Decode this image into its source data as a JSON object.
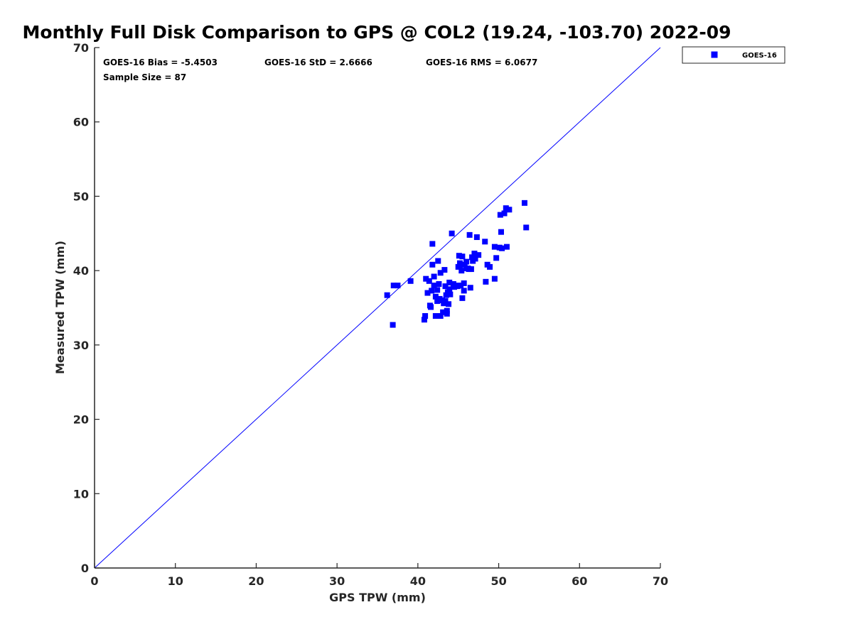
{
  "chart_data": {
    "type": "scatter",
    "title": "Monthly Full Disk Comparison to GPS @ COL2 (19.24, -103.70) 2022-09",
    "xlabel": "GPS TPW (mm)",
    "ylabel": "Measured TPW (mm)",
    "xlim": [
      0,
      70
    ],
    "ylim": [
      0,
      70
    ],
    "xticks": [
      "0",
      "10",
      "20",
      "30",
      "40",
      "50",
      "60",
      "70"
    ],
    "yticks": [
      "0",
      "10",
      "20",
      "30",
      "40",
      "50",
      "60",
      "70"
    ],
    "grid": false,
    "legend": {
      "position": "outside-top-right",
      "entries": [
        "GOES-16"
      ]
    },
    "annotations": {
      "bias": "GOES-16 Bias = -5.4503",
      "std": "GOES-16 StD = 2.6666",
      "rms": "GOES-16 RMS = 6.0677",
      "sample": "Sample Size = 87"
    },
    "reference_line": {
      "label": "1:1",
      "from": [
        0,
        0
      ],
      "to": [
        70,
        70
      ],
      "color": "#0000ff"
    },
    "series": [
      {
        "name": "GOES-16",
        "color": "#0000ff",
        "marker": "square",
        "points": [
          [
            36.2,
            36.7
          ],
          [
            36.9,
            32.7
          ],
          [
            37.0,
            38.0
          ],
          [
            37.5,
            38.0
          ],
          [
            39.1,
            38.6
          ],
          [
            40.8,
            33.4
          ],
          [
            40.9,
            33.9
          ],
          [
            41.0,
            38.9
          ],
          [
            41.2,
            37.0
          ],
          [
            41.4,
            38.6
          ],
          [
            41.6,
            35.1
          ],
          [
            41.7,
            37.3
          ],
          [
            41.8,
            40.8
          ],
          [
            41.8,
            43.6
          ],
          [
            42.0,
            39.2
          ],
          [
            42.2,
            36.5
          ],
          [
            42.2,
            33.9
          ],
          [
            42.4,
            35.9
          ],
          [
            42.4,
            37.4
          ],
          [
            42.5,
            41.3
          ],
          [
            42.6,
            38.2
          ],
          [
            42.7,
            36.2
          ],
          [
            42.8,
            39.7
          ],
          [
            42.8,
            33.9
          ],
          [
            43.0,
            36.0
          ],
          [
            43.1,
            34.4
          ],
          [
            43.2,
            35.6
          ],
          [
            43.3,
            40.1
          ],
          [
            43.4,
            37.9
          ],
          [
            43.5,
            36.7
          ],
          [
            43.6,
            34.2
          ],
          [
            43.6,
            34.6
          ],
          [
            43.7,
            37.1
          ],
          [
            43.8,
            35.5
          ],
          [
            43.9,
            37.5
          ],
          [
            44.0,
            36.8
          ],
          [
            44.2,
            45.0
          ],
          [
            44.4,
            38.2
          ],
          [
            44.5,
            37.8
          ],
          [
            44.9,
            37.9
          ],
          [
            45.0,
            40.5
          ],
          [
            45.1,
            42.0
          ],
          [
            45.2,
            41.0
          ],
          [
            45.3,
            38.0
          ],
          [
            45.4,
            40.0
          ],
          [
            45.5,
            41.9
          ],
          [
            45.5,
            36.3
          ],
          [
            45.7,
            38.3
          ],
          [
            45.7,
            37.3
          ],
          [
            45.8,
            40.8
          ],
          [
            46.0,
            40.3
          ],
          [
            46.3,
            40.2
          ],
          [
            46.4,
            44.8
          ],
          [
            46.5,
            37.7
          ],
          [
            46.6,
            40.2
          ],
          [
            46.7,
            41.8
          ],
          [
            46.8,
            41.3
          ],
          [
            47.0,
            42.2
          ],
          [
            47.1,
            41.6
          ],
          [
            47.3,
            44.5
          ],
          [
            47.5,
            42.1
          ],
          [
            48.3,
            43.9
          ],
          [
            48.4,
            38.5
          ],
          [
            48.6,
            40.8
          ],
          [
            48.9,
            40.5
          ],
          [
            49.5,
            38.9
          ],
          [
            49.5,
            43.2
          ],
          [
            49.7,
            41.7
          ],
          [
            50.1,
            43.1
          ],
          [
            50.2,
            47.5
          ],
          [
            50.3,
            45.2
          ],
          [
            50.4,
            43.0
          ],
          [
            50.7,
            47.7
          ],
          [
            50.9,
            48.4
          ],
          [
            51.0,
            43.2
          ],
          [
            51.3,
            48.2
          ],
          [
            53.2,
            49.1
          ],
          [
            53.4,
            45.8
          ],
          [
            43.4,
            35.9
          ],
          [
            42.0,
            38.0
          ],
          [
            43.9,
            38.4
          ],
          [
            46.0,
            41.2
          ],
          [
            44.6,
            38.0
          ],
          [
            47.0,
            42.3
          ],
          [
            41.5,
            35.3
          ],
          [
            45.2,
            40.7
          ],
          [
            46.2,
            40.3
          ]
        ]
      }
    ]
  }
}
